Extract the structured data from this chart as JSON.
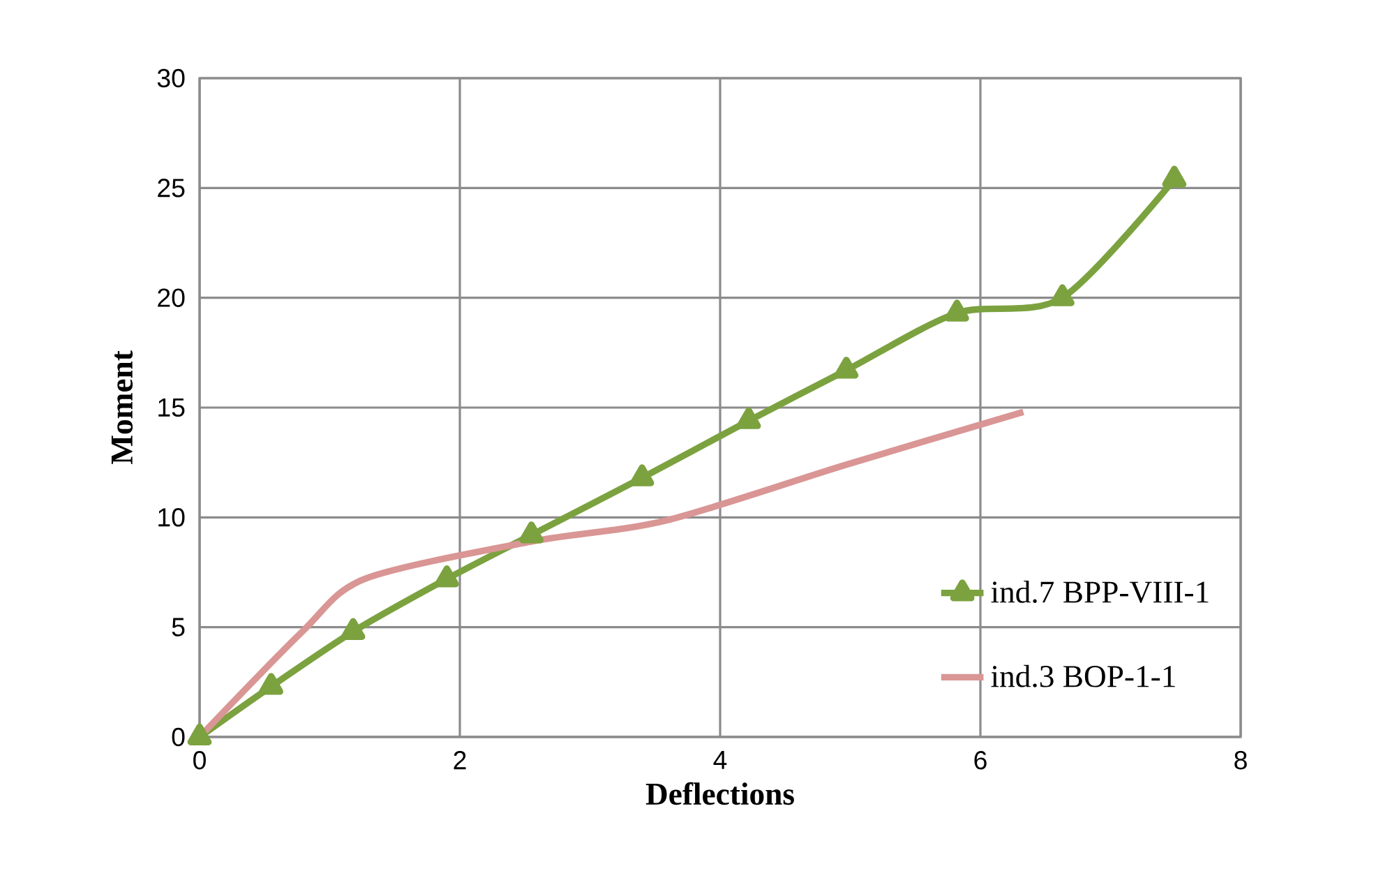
{
  "chart_data": {
    "type": "line",
    "xlabel": "Deflections",
    "ylabel": "Moment",
    "xlim": [
      0,
      8
    ],
    "xticks": [
      0,
      2,
      4,
      6,
      8
    ],
    "ylim": [
      0,
      30
    ],
    "yticks": [
      0,
      5,
      10,
      15,
      20,
      25,
      30
    ],
    "grid": true,
    "legend": "right",
    "series": [
      {
        "name": "ind.7 BPP-VIII-1",
        "color": "#7ba23f",
        "marker": "triangle",
        "x": [
          0,
          0.55,
          1.18,
          1.9,
          2.55,
          3.4,
          4.22,
          4.97,
          5.82,
          6.63,
          7.49
        ],
        "values": [
          0,
          2.3,
          4.8,
          7.2,
          9.2,
          11.8,
          14.4,
          16.7,
          19.3,
          20.0,
          25.4
        ]
      },
      {
        "name": "ind.3 BOP-1-1",
        "color": "#d99694",
        "x": [
          0,
          0.79,
          1.27,
          2.55,
          3.58,
          4.97,
          6.33
        ],
        "values": [
          0,
          4.8,
          7.2,
          8.9,
          9.85,
          12.4,
          14.8
        ]
      }
    ]
  }
}
